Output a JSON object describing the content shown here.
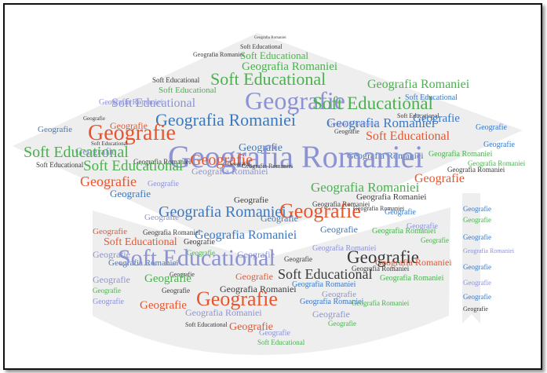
{
  "colors": {
    "green": "#4caf50",
    "blue": "#3a78c2",
    "periwinkle": "#8c93d4",
    "orange": "#e8552d",
    "dark": "#3a3a3a",
    "shape_fill": "#eeeeee"
  },
  "words": {
    "geografie": "Geografie",
    "soft_educational": "Soft Educational",
    "geografia_romaniei": "Geografia Romaniei"
  }
}
